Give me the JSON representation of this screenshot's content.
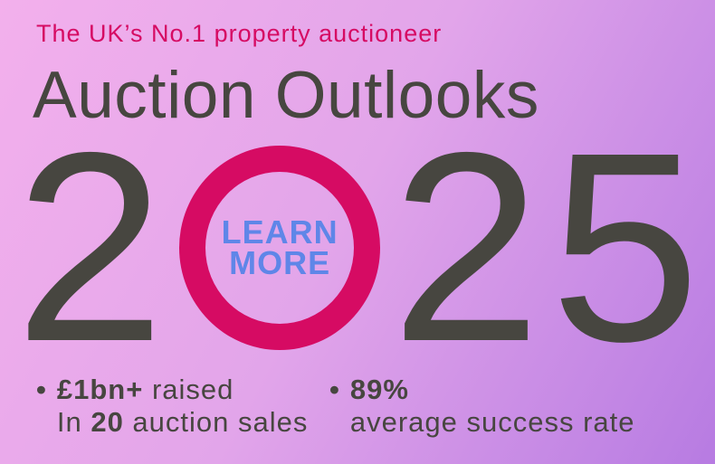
{
  "colors": {
    "bg-top": "#f3b0ec",
    "bg-mid": "#e2a5ea",
    "bg-bottom": "#b77be2",
    "accent": "#d60b63",
    "charcoal": "#474640",
    "blue": "#5f86e8"
  },
  "tagline": "The UK’s No.1 property auctioneer",
  "title": "Auction Outlooks",
  "year": {
    "prefix": "2",
    "suffix": "25",
    "full": "2025"
  },
  "learn_more": {
    "line1": "LEARN",
    "line2": "MORE"
  },
  "bullets": [
    {
      "marker": "•",
      "strong1": "£1bn+",
      "rest1": " raised",
      "pre2": "In ",
      "strong2": "20",
      "rest2": " auction sales"
    },
    {
      "marker": "•",
      "strong1": "89%",
      "rest1": "",
      "pre2": "",
      "strong2": "",
      "rest2": "average success rate"
    }
  ]
}
